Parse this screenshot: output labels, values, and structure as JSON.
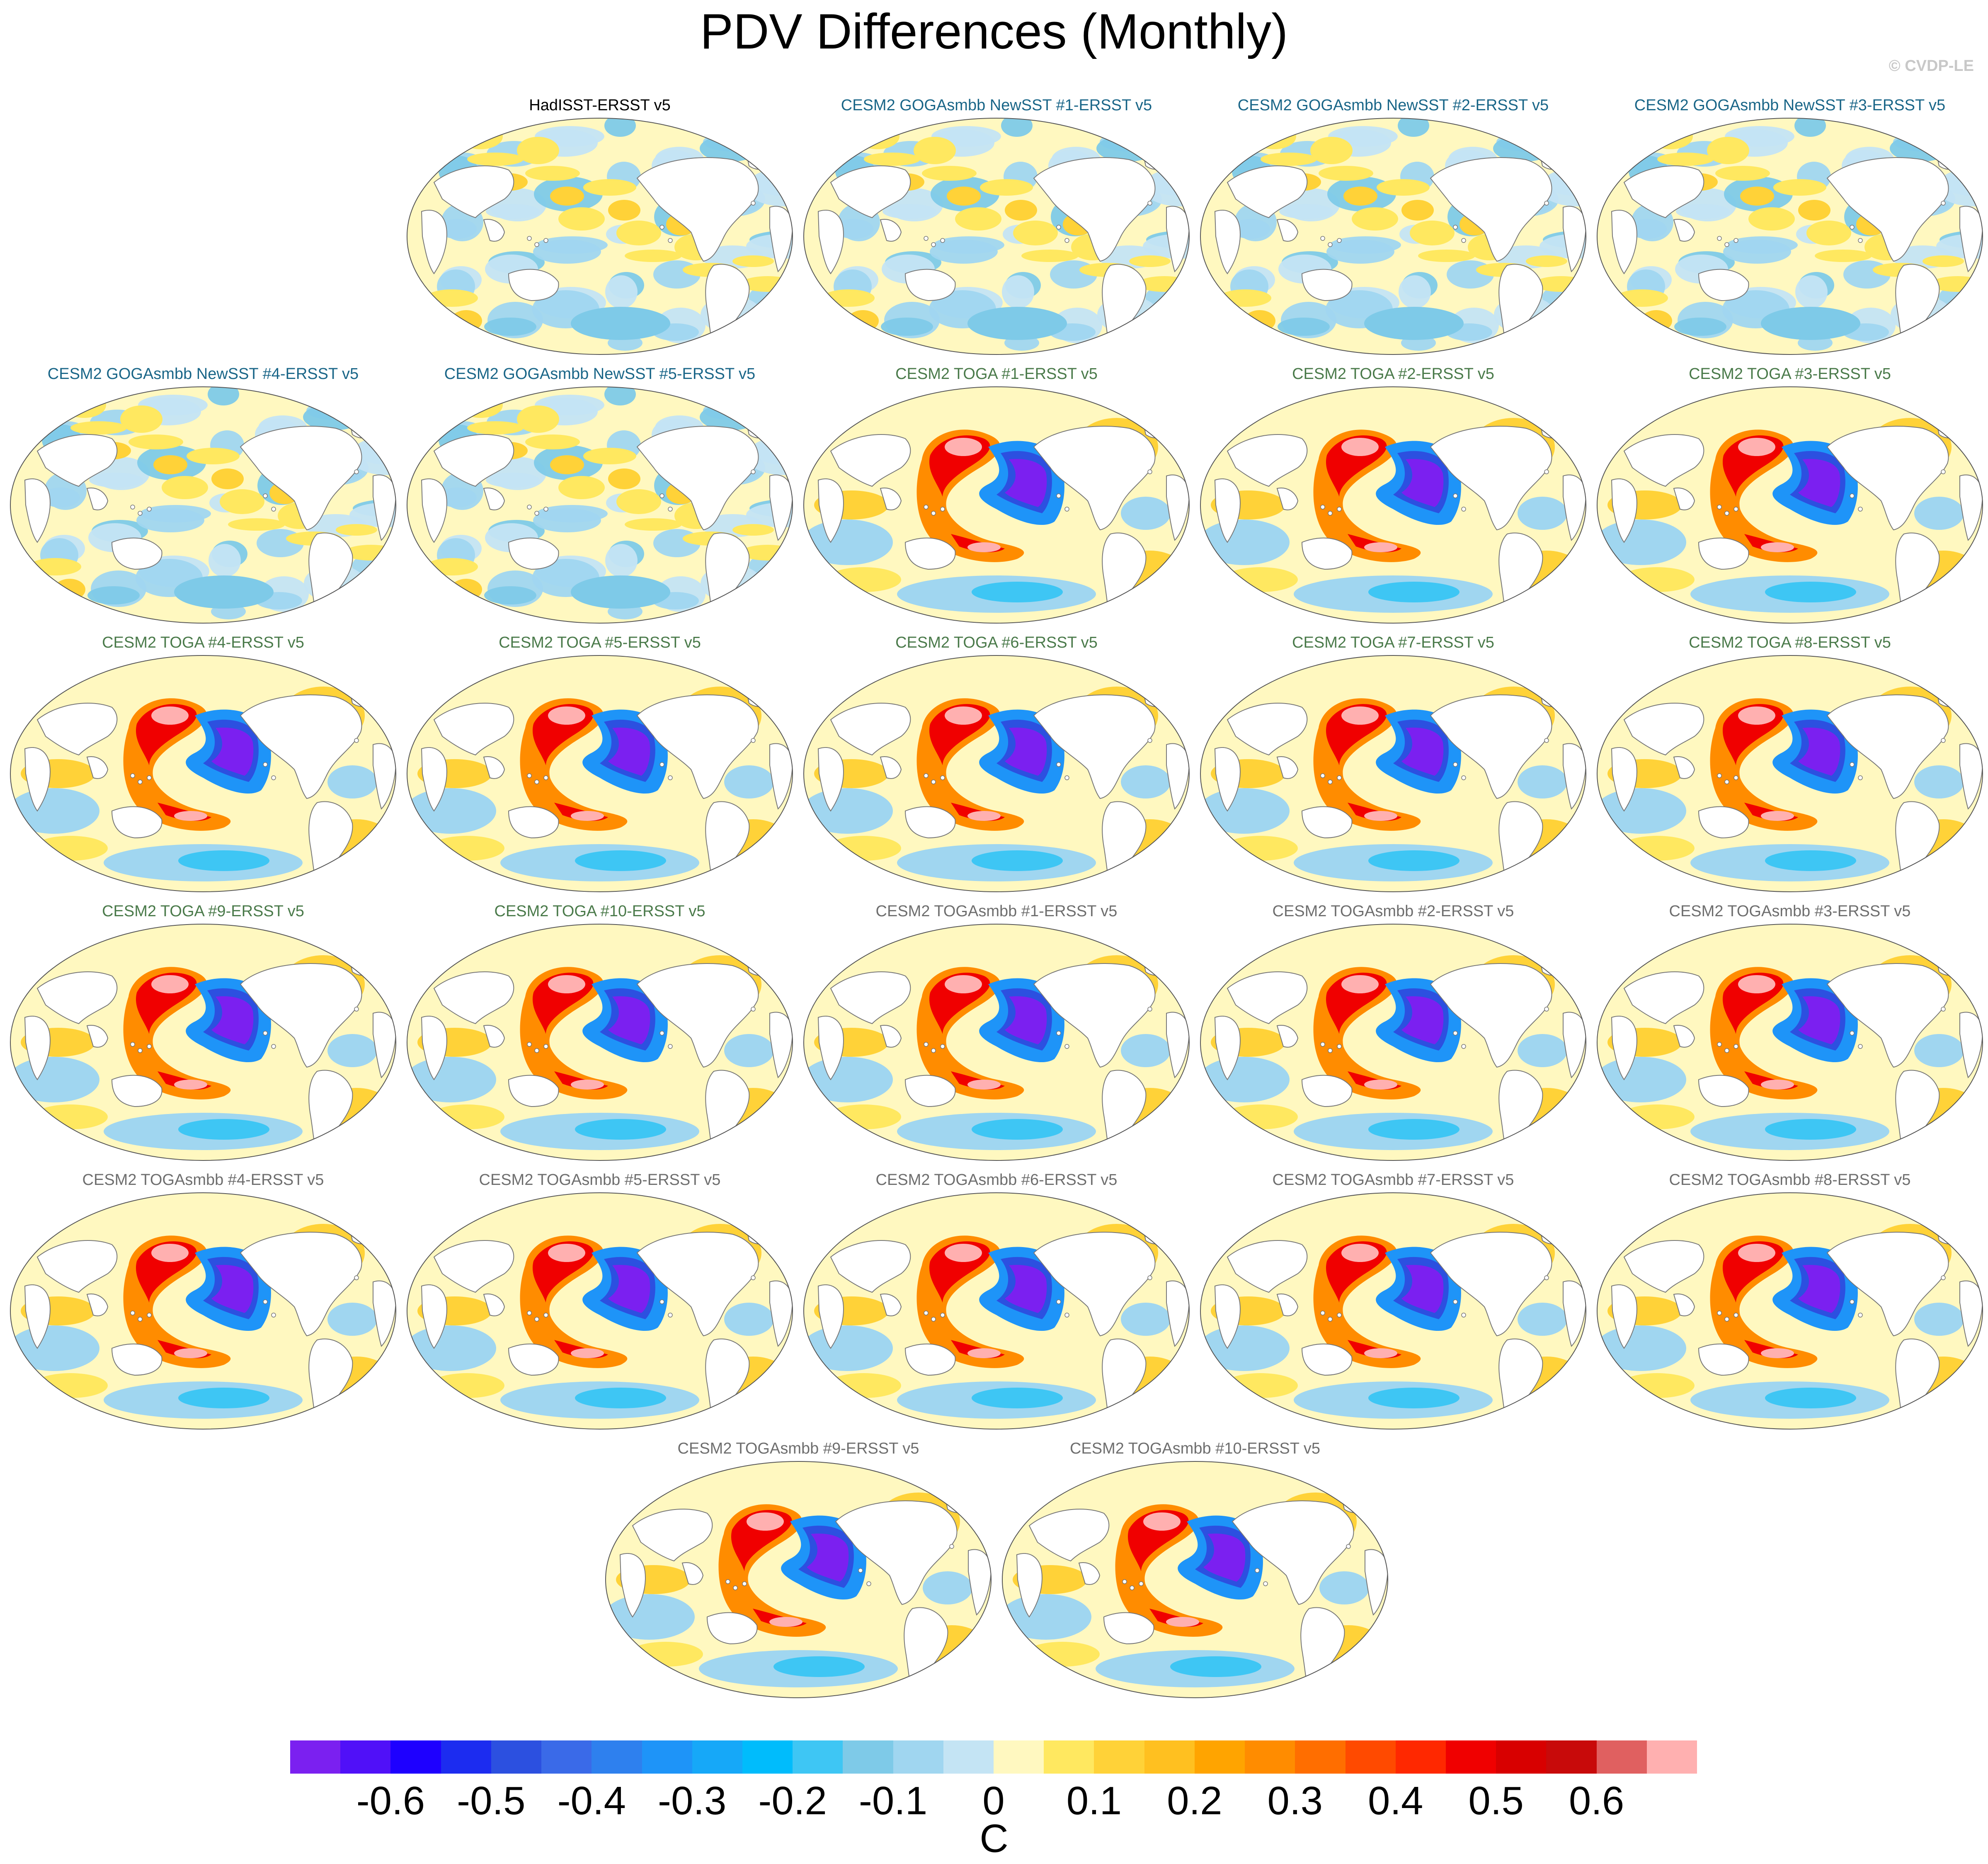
{
  "title": "PDV Differences (Monthly)",
  "copyright": "© CVDP-LE",
  "unit": "C",
  "colorbar": {
    "colors": [
      "#7b20f0",
      "#5010f8",
      "#1e00ff",
      "#1c2cf0",
      "#2c50e0",
      "#3a6ae8",
      "#2e80ee",
      "#1e94f8",
      "#16a8f8",
      "#00bcfc",
      "#3ec6f4",
      "#7ecae8",
      "#a0d6f0",
      "#c4e4f4",
      "#fff8c0",
      "#ffe860",
      "#ffd238",
      "#ffc020",
      "#ffa400",
      "#ff8c00",
      "#ff6e00",
      "#ff4a00",
      "#ff2800",
      "#f00000",
      "#d80000",
      "#c80a0a",
      "#e06060",
      "#ffb0b0"
    ],
    "tick_labels": [
      "-0.6",
      "-0.5",
      "-0.4",
      "-0.3",
      "-0.2",
      "-0.1",
      "0",
      "0.1",
      "0.2",
      "0.3",
      "0.4",
      "0.5",
      "0.6"
    ]
  },
  "panels": [
    {
      "label": "HadISST-ERSST v5",
      "color": "#000000",
      "pattern": "weak"
    },
    {
      "label": "CESM2 GOGAsmbb NewSST #1-ERSST v5",
      "color": "#1a6688",
      "pattern": "weak"
    },
    {
      "label": "CESM2 GOGAsmbb NewSST #2-ERSST v5",
      "color": "#1a6688",
      "pattern": "weak"
    },
    {
      "label": "CESM2 GOGAsmbb NewSST #3-ERSST v5",
      "color": "#1a6688",
      "pattern": "weak"
    },
    {
      "label": "CESM2 GOGAsmbb NewSST #4-ERSST v5",
      "color": "#1a6688",
      "pattern": "weak"
    },
    {
      "label": "CESM2 GOGAsmbb NewSST #5-ERSST v5",
      "color": "#1a6688",
      "pattern": "weak"
    },
    {
      "label": "CESM2 TOGA #1-ERSST v5",
      "color": "#4a7a4a",
      "pattern": "strong"
    },
    {
      "label": "CESM2 TOGA #2-ERSST v5",
      "color": "#4a7a4a",
      "pattern": "strong"
    },
    {
      "label": "CESM2 TOGA #3-ERSST v5",
      "color": "#4a7a4a",
      "pattern": "strong"
    },
    {
      "label": "CESM2 TOGA #4-ERSST v5",
      "color": "#4a7a4a",
      "pattern": "strong"
    },
    {
      "label": "CESM2 TOGA #5-ERSST v5",
      "color": "#4a7a4a",
      "pattern": "strong"
    },
    {
      "label": "CESM2 TOGA #6-ERSST v5",
      "color": "#4a7a4a",
      "pattern": "strong"
    },
    {
      "label": "CESM2 TOGA #7-ERSST v5",
      "color": "#4a7a4a",
      "pattern": "strong"
    },
    {
      "label": "CESM2 TOGA #8-ERSST v5",
      "color": "#4a7a4a",
      "pattern": "strong"
    },
    {
      "label": "CESM2 TOGA #9-ERSST v5",
      "color": "#4a7a4a",
      "pattern": "strong"
    },
    {
      "label": "CESM2 TOGA #10-ERSST v5",
      "color": "#4a7a4a",
      "pattern": "strong"
    },
    {
      "label": "CESM2 TOGAsmbb #1-ERSST v5",
      "color": "#6e6e6e",
      "pattern": "strong"
    },
    {
      "label": "CESM2 TOGAsmbb #2-ERSST v5",
      "color": "#6e6e6e",
      "pattern": "strong"
    },
    {
      "label": "CESM2 TOGAsmbb #3-ERSST v5",
      "color": "#6e6e6e",
      "pattern": "strong"
    },
    {
      "label": "CESM2 TOGAsmbb #4-ERSST v5",
      "color": "#6e6e6e",
      "pattern": "strong"
    },
    {
      "label": "CESM2 TOGAsmbb #5-ERSST v5",
      "color": "#6e6e6e",
      "pattern": "strong"
    },
    {
      "label": "CESM2 TOGAsmbb #6-ERSST v5",
      "color": "#6e6e6e",
      "pattern": "strong"
    },
    {
      "label": "CESM2 TOGAsmbb #7-ERSST v5",
      "color": "#6e6e6e",
      "pattern": "strong"
    },
    {
      "label": "CESM2 TOGAsmbb #8-ERSST v5",
      "color": "#6e6e6e",
      "pattern": "strong"
    },
    {
      "label": "CESM2 TOGAsmbb #9-ERSST v5",
      "color": "#6e6e6e",
      "pattern": "strong"
    },
    {
      "label": "CESM2 TOGAsmbb #10-ERSST v5",
      "color": "#6e6e6e",
      "pattern": "strong"
    }
  ]
}
